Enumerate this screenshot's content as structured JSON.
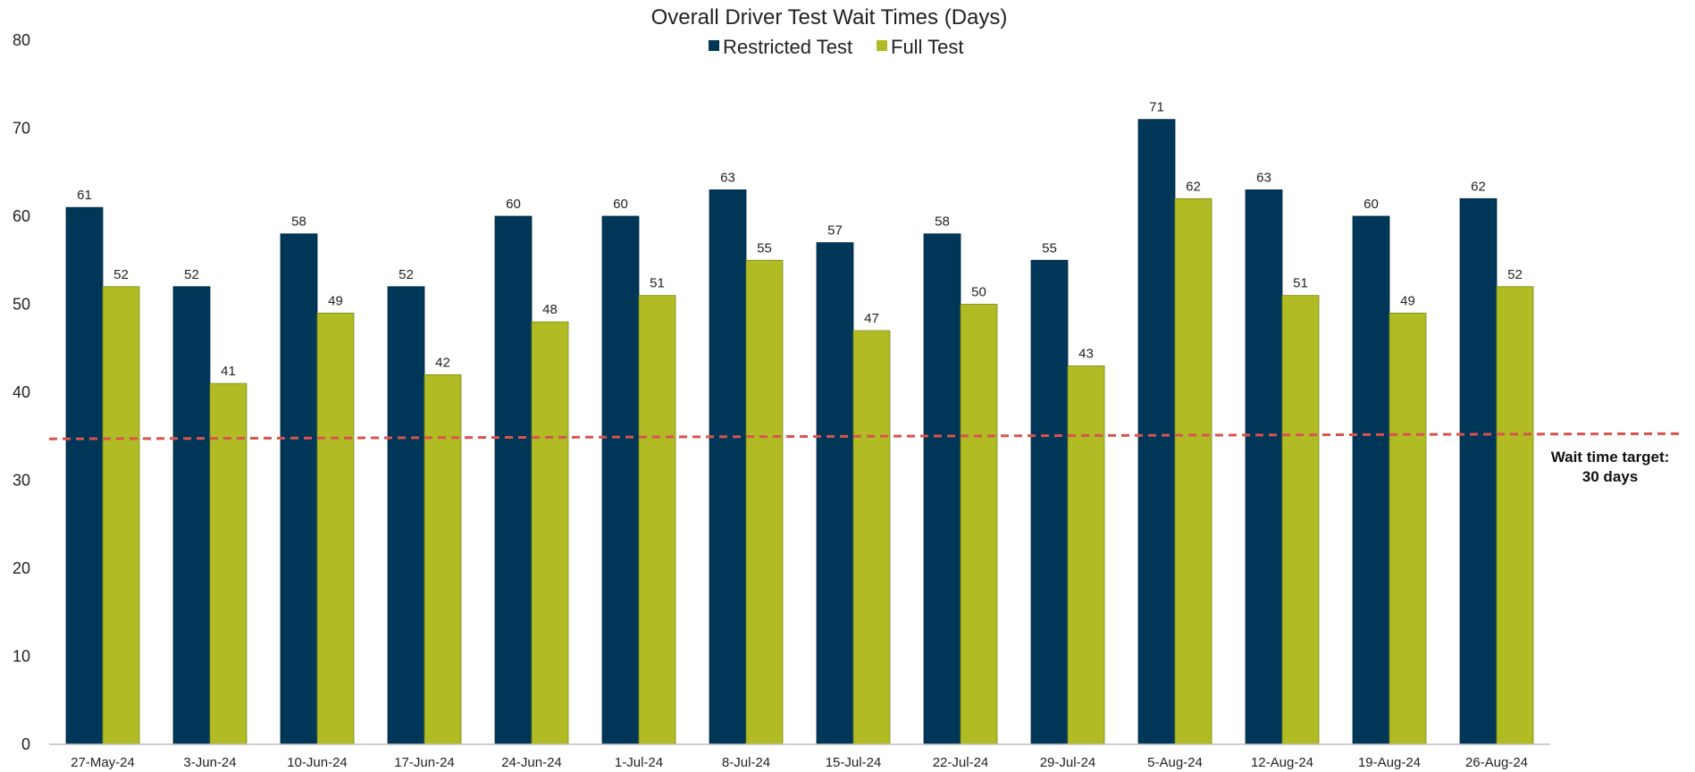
{
  "chart_data": {
    "type": "bar",
    "title": "Overall Driver Test Wait Times (Days)",
    "xlabel": "",
    "ylabel": "",
    "ylim": [
      0,
      80
    ],
    "yticks": [
      0,
      10,
      20,
      30,
      40,
      50,
      60,
      70,
      80
    ],
    "grid": false,
    "legend_position": "top-center",
    "categories": [
      "27-May-24",
      "3-Jun-24",
      "10-Jun-24",
      "17-Jun-24",
      "24-Jun-24",
      "1-Jul-24",
      "8-Jul-24",
      "15-Jul-24",
      "22-Jul-24",
      "29-Jul-24",
      "5-Aug-24",
      "12-Aug-24",
      "19-Aug-24",
      "26-Aug-24"
    ],
    "series": [
      {
        "name": "Restricted Test",
        "color": "#003657",
        "values": [
          61,
          52,
          58,
          52,
          60,
          60,
          63,
          57,
          58,
          55,
          71,
          63,
          60,
          62
        ]
      },
      {
        "name": "Full Test",
        "color": "#b1bb23",
        "values": [
          52,
          41,
          49,
          42,
          48,
          51,
          55,
          47,
          50,
          43,
          62,
          51,
          49,
          52
        ]
      }
    ],
    "reference_line": {
      "style": "dashed",
      "color": "#d9534f",
      "start_value": 34.7,
      "end_value": 35.3,
      "label_line1": "Wait time target:",
      "label_line2": "30 days"
    }
  }
}
